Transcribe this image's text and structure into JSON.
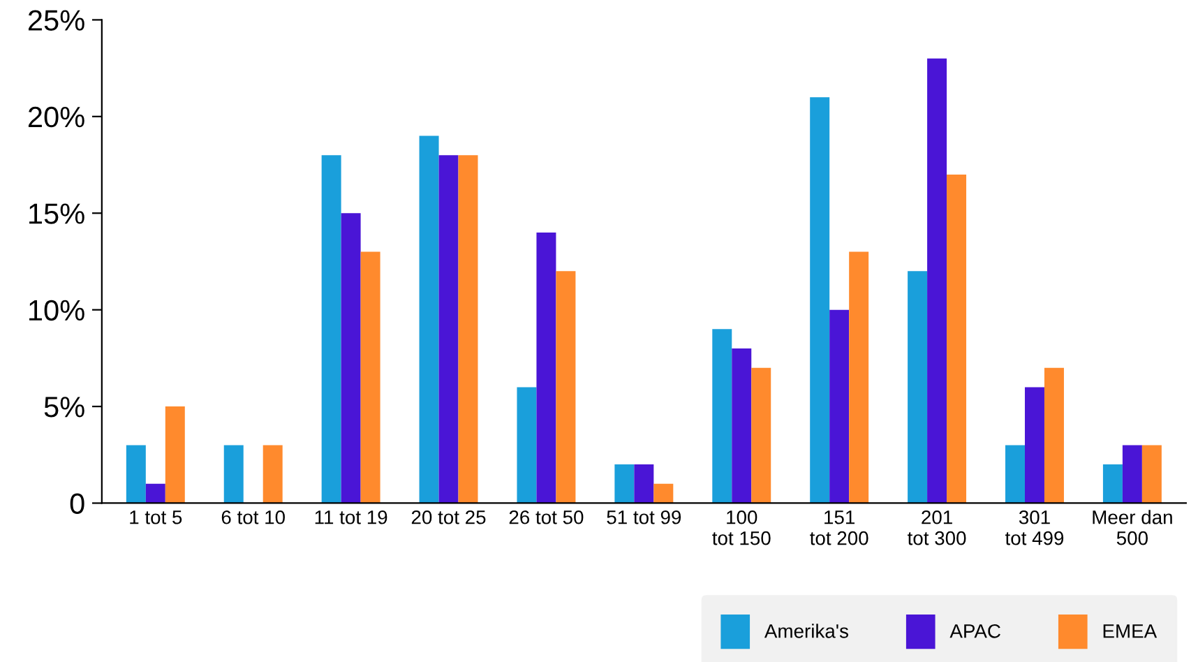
{
  "chart_data": {
    "type": "bar",
    "categories": [
      "1 tot 5",
      "6 tot 10",
      "11 tot 19",
      "20 tot 25",
      "26 tot 50",
      "51 tot 99",
      "100\ntot 150",
      "151\ntot 200",
      "201\ntot 300",
      "301\ntot 499",
      "Meer dan\n500"
    ],
    "series": [
      {
        "name": "Amerika's",
        "color": "#1a9fdb",
        "values": [
          3,
          3,
          18,
          19,
          6,
          2,
          9,
          21,
          12,
          3,
          2
        ]
      },
      {
        "name": "APAC",
        "color": "#4a15d6",
        "values": [
          1,
          0,
          15,
          18,
          14,
          2,
          8,
          10,
          23,
          6,
          3
        ]
      },
      {
        "name": "EMEA",
        "color": "#ff8a2d",
        "values": [
          5,
          3,
          13,
          18,
          12,
          1,
          7,
          13,
          17,
          7,
          3
        ]
      }
    ],
    "ylim": [
      0,
      25
    ],
    "yticks": [
      {
        "value": 0,
        "label": "0"
      },
      {
        "value": 5,
        "label": "5%"
      },
      {
        "value": 10,
        "label": "10%"
      },
      {
        "value": 15,
        "label": "15%"
      },
      {
        "value": 20,
        "label": "20%"
      },
      {
        "value": 25,
        "label": "25%"
      }
    ],
    "grid": false,
    "legend": "bottom right"
  }
}
